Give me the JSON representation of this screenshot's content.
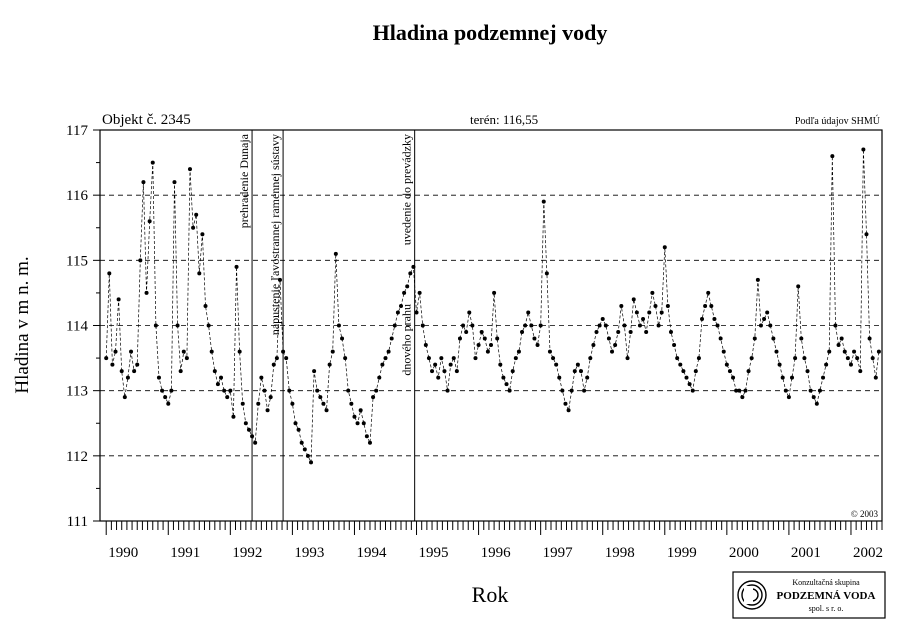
{
  "title": "Hladina podzemnej vody",
  "header": {
    "object_label": "Objekt č. 2345",
    "terrain_label": "terén: 116,55",
    "source_label": "Podľa údajov SHMÚ",
    "copyright": "© 2003"
  },
  "logo": {
    "line1": "Konzultačná skupina",
    "line2": "PODZEMNÁ VODA",
    "line3": "spol. s r. o."
  },
  "chart_data": {
    "type": "line",
    "title": "Hladina podzemnej vody",
    "xlabel": "Rok",
    "ylabel": "Hladina v m n. m.",
    "xlim": [
      1989.9,
      2002.5
    ],
    "ylim": [
      111,
      117
    ],
    "y_ticks": [
      111,
      112,
      113,
      114,
      115,
      116,
      117
    ],
    "y_tick_labels": [
      "111",
      "112",
      "113",
      "114",
      "115",
      "116",
      "117"
    ],
    "x_tick_labels": [
      "1990",
      "1991",
      "1992",
      "1993",
      "1994",
      "1995",
      "1996",
      "1997",
      "1998",
      "1999",
      "2000",
      "2001",
      "2002"
    ],
    "x_tick_years": [
      1990,
      1991,
      1992,
      1993,
      1994,
      1995,
      1996,
      1997,
      1998,
      1999,
      2000,
      2001,
      2002
    ],
    "grid": "horizontal dashed",
    "events": [
      {
        "x": 1992.35,
        "label": "prehradenie Dunaja"
      },
      {
        "x": 1992.85,
        "label": "napustenie ľavostrannej ramennej sústavy"
      },
      {
        "x": 1994.97,
        "label": "uvedenie do prevádzky"
      },
      {
        "x": 1994.97,
        "label": "dnového prahu"
      }
    ],
    "series": [
      {
        "x": [
          1990.0,
          1990.05,
          1990.1,
          1990.15,
          1990.2,
          1990.25,
          1990.3,
          1990.35,
          1990.4,
          1990.45,
          1990.5,
          1990.55,
          1990.6,
          1990.65,
          1990.7,
          1990.75,
          1990.8,
          1990.85,
          1990.9,
          1990.95,
          1991.0,
          1991.05,
          1991.1,
          1991.15,
          1991.2,
          1991.25,
          1991.3,
          1991.35,
          1991.4,
          1991.45,
          1991.5,
          1991.55,
          1991.6,
          1991.65,
          1991.7,
          1991.75,
          1991.8,
          1991.85,
          1991.9,
          1991.95,
          1992.0,
          1992.05,
          1992.1,
          1992.15,
          1992.2,
          1992.25,
          1992.3,
          1992.35,
          1992.4,
          1992.45,
          1992.5,
          1992.55,
          1992.6,
          1992.65,
          1992.7,
          1992.75,
          1992.8,
          1992.85,
          1992.9,
          1992.95,
          1993.0,
          1993.05,
          1993.1,
          1993.15,
          1993.2,
          1993.25,
          1993.3,
          1993.35,
          1993.4,
          1993.45,
          1993.5,
          1993.55,
          1993.6,
          1993.65,
          1993.7,
          1993.75,
          1993.8,
          1993.85,
          1993.9,
          1993.95,
          1994.0,
          1994.05,
          1994.1,
          1994.15,
          1994.2,
          1994.25,
          1994.3,
          1994.35,
          1994.4,
          1994.45,
          1994.5,
          1994.55,
          1994.6,
          1994.65,
          1994.7,
          1994.75,
          1994.8,
          1994.85,
          1994.9,
          1994.95,
          1995.0,
          1995.05,
          1995.1,
          1995.15,
          1995.2,
          1995.25,
          1995.3,
          1995.35,
          1995.4,
          1995.45,
          1995.5,
          1995.55,
          1995.6,
          1995.65,
          1995.7,
          1995.75,
          1995.8,
          1995.85,
          1995.9,
          1995.95,
          1996.0,
          1996.05,
          1996.1,
          1996.15,
          1996.2,
          1996.25,
          1996.3,
          1996.35,
          1996.4,
          1996.45,
          1996.5,
          1996.55,
          1996.6,
          1996.65,
          1996.7,
          1996.75,
          1996.8,
          1996.85,
          1996.9,
          1996.95,
          1997.0,
          1997.05,
          1997.1,
          1997.15,
          1997.2,
          1997.25,
          1997.3,
          1997.35,
          1997.4,
          1997.45,
          1997.5,
          1997.55,
          1997.6,
          1997.65,
          1997.7,
          1997.75,
          1997.8,
          1997.85,
          1997.9,
          1997.95,
          1998.0,
          1998.05,
          1998.1,
          1998.15,
          1998.2,
          1998.25,
          1998.3,
          1998.35,
          1998.4,
          1998.45,
          1998.5,
          1998.55,
          1998.6,
          1998.65,
          1998.7,
          1998.75,
          1998.8,
          1998.85,
          1998.9,
          1998.95,
          1999.0,
          1999.05,
          1999.1,
          1999.15,
          1999.2,
          1999.25,
          1999.3,
          1999.35,
          1999.4,
          1999.45,
          1999.5,
          1999.55,
          1999.6,
          1999.65,
          1999.7,
          1999.75,
          1999.8,
          1999.85,
          1999.9,
          1999.95,
          2000.0,
          2000.05,
          2000.1,
          2000.15,
          2000.2,
          2000.25,
          2000.3,
          2000.35,
          2000.4,
          2000.45,
          2000.5,
          2000.55,
          2000.6,
          2000.65,
          2000.7,
          2000.75,
          2000.8,
          2000.85,
          2000.9,
          2000.95,
          2001.0,
          2001.05,
          2001.1,
          2001.15,
          2001.2,
          2001.25,
          2001.3,
          2001.35,
          2001.4,
          2001.45,
          2001.5,
          2001.55,
          2001.6,
          2001.65,
          2001.7,
          2001.75,
          2001.8,
          2001.85,
          2001.9,
          2001.95,
          2002.0,
          2002.05,
          2002.1,
          2002.15,
          2002.2,
          2002.25,
          2002.3,
          2002.35,
          2002.4,
          2002.45
        ],
        "values": [
          113.5,
          114.8,
          113.4,
          113.6,
          114.4,
          113.3,
          112.9,
          113.2,
          113.6,
          113.3,
          113.4,
          115.0,
          116.2,
          114.5,
          115.6,
          116.5,
          114.0,
          113.2,
          113.0,
          112.9,
          112.8,
          113.0,
          116.2,
          114.0,
          113.3,
          113.6,
          113.5,
          116.4,
          115.5,
          115.7,
          114.8,
          115.4,
          114.3,
          114.0,
          113.6,
          113.3,
          113.1,
          113.2,
          113.0,
          112.9,
          113.0,
          112.6,
          114.9,
          113.6,
          112.8,
          112.5,
          112.4,
          112.3,
          112.2,
          112.8,
          113.2,
          113.0,
          112.7,
          112.9,
          113.4,
          113.5,
          114.7,
          113.6,
          113.5,
          113.0,
          112.8,
          112.5,
          112.4,
          112.2,
          112.1,
          112.0,
          111.9,
          113.3,
          113.0,
          112.9,
          112.8,
          112.7,
          113.4,
          113.6,
          115.1,
          114.0,
          113.8,
          113.5,
          113.0,
          112.8,
          112.6,
          112.5,
          112.7,
          112.5,
          112.3,
          112.2,
          112.9,
          113.0,
          113.2,
          113.4,
          113.5,
          113.6,
          113.8,
          114.0,
          114.2,
          114.3,
          114.5,
          114.6,
          114.8,
          114.9,
          114.2,
          114.5,
          114.0,
          113.7,
          113.5,
          113.3,
          113.4,
          113.2,
          113.5,
          113.3,
          113.0,
          113.4,
          113.5,
          113.3,
          113.8,
          114.0,
          113.9,
          114.2,
          114.0,
          113.5,
          113.7,
          113.9,
          113.8,
          113.6,
          113.7,
          114.5,
          113.8,
          113.4,
          113.2,
          113.1,
          113.0,
          113.3,
          113.5,
          113.6,
          113.9,
          114.0,
          114.2,
          114.0,
          113.8,
          113.7,
          114.0,
          115.9,
          114.8,
          113.6,
          113.5,
          113.4,
          113.2,
          113.0,
          112.8,
          112.7,
          113.0,
          113.3,
          113.4,
          113.3,
          113.0,
          113.2,
          113.5,
          113.7,
          113.9,
          114.0,
          114.1,
          114.0,
          113.8,
          113.6,
          113.7,
          113.9,
          114.3,
          114.0,
          113.5,
          113.9,
          114.4,
          114.2,
          114.0,
          114.1,
          113.9,
          114.2,
          114.5,
          114.3,
          114.0,
          114.2,
          115.2,
          114.3,
          113.9,
          113.7,
          113.5,
          113.4,
          113.3,
          113.2,
          113.1,
          113.0,
          113.3,
          113.5,
          114.1,
          114.3,
          114.5,
          114.3,
          114.1,
          114.0,
          113.8,
          113.6,
          113.4,
          113.3,
          113.2,
          113.0,
          113.0,
          112.9,
          113.0,
          113.3,
          113.5,
          113.8,
          114.7,
          114.0,
          114.1,
          114.2,
          114.0,
          113.8,
          113.6,
          113.4,
          113.2,
          113.0,
          112.9,
          113.2,
          113.5,
          114.6,
          113.8,
          113.5,
          113.3,
          113.0,
          112.9,
          112.8,
          113.0,
          113.2,
          113.4,
          113.6,
          116.6,
          114.0,
          113.7,
          113.8,
          113.6,
          113.5,
          113.4,
          113.6,
          113.5,
          113.3,
          116.7,
          115.4,
          113.8,
          113.5,
          113.2,
          113.6
        ]
      }
    ]
  }
}
